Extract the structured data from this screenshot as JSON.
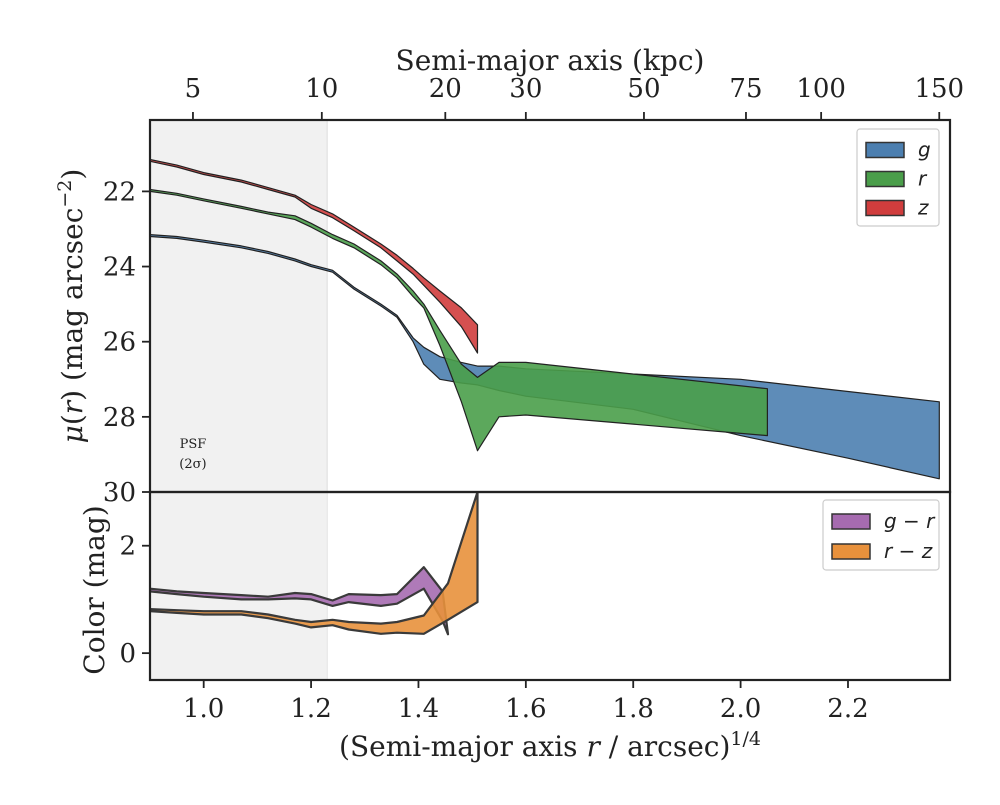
{
  "chart_data": [
    {
      "type": "area",
      "panel": "top",
      "ylabel": "μ(r) (mag arcsec⁻²)",
      "top_xlabel": "Semi-major axis (kpc)",
      "xlim": [
        0.9,
        2.39
      ],
      "ylim": [
        30,
        20.1
      ],
      "y_inverted": true,
      "yticks": [
        22,
        24,
        26,
        28,
        30
      ],
      "top_ticks": [
        {
          "label": "5",
          "x": 0.98
        },
        {
          "label": "10",
          "x": 1.22
        },
        {
          "label": "20",
          "x": 1.45
        },
        {
          "label": "30",
          "x": 1.6
        },
        {
          "label": "50",
          "x": 1.82
        },
        {
          "label": "75",
          "x": 2.01
        },
        {
          "label": "100",
          "x": 2.15
        },
        {
          "label": "150",
          "x": 2.37
        }
      ],
      "psf_shade": {
        "x0": 0.9,
        "x1": 1.23,
        "line1": "PSF",
        "line2": "(2σ)"
      },
      "legend": {
        "placement": "top-right"
      },
      "series": [
        {
          "name": "g",
          "color": "#4c7fb0",
          "upper": [
            [
              0.9,
              23.15
            ],
            [
              0.95,
              23.2
            ],
            [
              1.0,
              23.3
            ],
            [
              1.07,
              23.45
            ],
            [
              1.12,
              23.6
            ],
            [
              1.17,
              23.8
            ],
            [
              1.2,
              23.95
            ],
            [
              1.24,
              24.1
            ],
            [
              1.28,
              24.55
            ],
            [
              1.33,
              25.0
            ],
            [
              1.36,
              25.3
            ],
            [
              1.39,
              25.9
            ],
            [
              1.41,
              26.15
            ],
            [
              1.44,
              26.4
            ],
            [
              1.48,
              26.55
            ],
            [
              1.51,
              26.65
            ],
            [
              1.55,
              26.65
            ],
            [
              1.6,
              26.72
            ],
            [
              2.0,
              27.0
            ],
            [
              2.37,
              27.6
            ]
          ],
          "lower": [
            [
              0.9,
              23.2
            ],
            [
              0.95,
              23.25
            ],
            [
              1.0,
              23.35
            ],
            [
              1.07,
              23.5
            ],
            [
              1.12,
              23.65
            ],
            [
              1.17,
              23.85
            ],
            [
              1.2,
              24.0
            ],
            [
              1.24,
              24.15
            ],
            [
              1.28,
              24.6
            ],
            [
              1.33,
              25.05
            ],
            [
              1.36,
              25.35
            ],
            [
              1.39,
              26.0
            ],
            [
              1.41,
              26.6
            ],
            [
              1.44,
              27.0
            ],
            [
              1.48,
              27.1
            ],
            [
              1.51,
              27.15
            ],
            [
              1.55,
              27.3
            ],
            [
              1.6,
              27.45
            ],
            [
              1.8,
              27.8
            ],
            [
              2.0,
              28.5
            ],
            [
              2.2,
              29.1
            ],
            [
              2.37,
              29.65
            ]
          ]
        },
        {
          "name": "r",
          "color": "#4a9e4a",
          "upper": [
            [
              0.9,
              21.95
            ],
            [
              0.95,
              22.05
            ],
            [
              1.0,
              22.2
            ],
            [
              1.07,
              22.4
            ],
            [
              1.12,
              22.55
            ],
            [
              1.17,
              22.65
            ],
            [
              1.2,
              22.85
            ],
            [
              1.24,
              23.15
            ],
            [
              1.28,
              23.4
            ],
            [
              1.33,
              23.85
            ],
            [
              1.36,
              24.2
            ],
            [
              1.39,
              24.65
            ],
            [
              1.41,
              25.0
            ],
            [
              1.44,
              25.7
            ],
            [
              1.48,
              26.6
            ],
            [
              1.51,
              26.95
            ],
            [
              1.55,
              26.55
            ],
            [
              1.6,
              26.55
            ],
            [
              2.05,
              27.25
            ]
          ],
          "lower": [
            [
              0.9,
              22.0
            ],
            [
              0.95,
              22.1
            ],
            [
              1.0,
              22.25
            ],
            [
              1.07,
              22.45
            ],
            [
              1.12,
              22.6
            ],
            [
              1.17,
              22.75
            ],
            [
              1.2,
              22.95
            ],
            [
              1.24,
              23.25
            ],
            [
              1.28,
              23.5
            ],
            [
              1.33,
              23.95
            ],
            [
              1.36,
              24.3
            ],
            [
              1.39,
              24.8
            ],
            [
              1.41,
              25.1
            ],
            [
              1.44,
              26.1
            ],
            [
              1.48,
              27.6
            ],
            [
              1.51,
              28.9
            ],
            [
              1.55,
              28.0
            ],
            [
              1.6,
              27.95
            ],
            [
              2.05,
              28.5
            ]
          ]
        },
        {
          "name": "z",
          "color": "#d03d3d",
          "upper": [
            [
              0.9,
              21.15
            ],
            [
              0.95,
              21.3
            ],
            [
              1.0,
              21.5
            ],
            [
              1.07,
              21.7
            ],
            [
              1.12,
              21.9
            ],
            [
              1.17,
              22.1
            ],
            [
              1.2,
              22.35
            ],
            [
              1.24,
              22.6
            ],
            [
              1.28,
              22.95
            ],
            [
              1.33,
              23.4
            ],
            [
              1.36,
              23.7
            ],
            [
              1.39,
              24.05
            ],
            [
              1.41,
              24.3
            ],
            [
              1.44,
              24.65
            ],
            [
              1.48,
              25.1
            ],
            [
              1.51,
              25.55
            ]
          ],
          "lower": [
            [
              0.9,
              21.2
            ],
            [
              0.95,
              21.35
            ],
            [
              1.0,
              21.55
            ],
            [
              1.07,
              21.75
            ],
            [
              1.12,
              21.95
            ],
            [
              1.17,
              22.15
            ],
            [
              1.2,
              22.45
            ],
            [
              1.24,
              22.7
            ],
            [
              1.28,
              23.05
            ],
            [
              1.33,
              23.5
            ],
            [
              1.36,
              23.85
            ],
            [
              1.39,
              24.2
            ],
            [
              1.41,
              24.5
            ],
            [
              1.44,
              24.95
            ],
            [
              1.48,
              25.6
            ],
            [
              1.51,
              26.3
            ]
          ]
        }
      ]
    },
    {
      "type": "area",
      "panel": "bottom",
      "xlabel": "(Semi-major axis r / arcsec)^1/4",
      "ylabel": "Color (mag)",
      "xlim": [
        0.9,
        2.39
      ],
      "ylim": [
        -0.5,
        3.0
      ],
      "yticks": [
        0,
        2
      ],
      "xticks": [
        1.0,
        1.2,
        1.4,
        1.6,
        1.8,
        2.0,
        2.2
      ],
      "legend": {
        "placement": "top-right"
      },
      "series": [
        {
          "name": "g − r",
          "color": "#a66bb0",
          "upper": [
            [
              0.9,
              1.2
            ],
            [
              0.95,
              1.15
            ],
            [
              1.0,
              1.12
            ],
            [
              1.07,
              1.08
            ],
            [
              1.12,
              1.05
            ],
            [
              1.17,
              1.12
            ],
            [
              1.2,
              1.1
            ],
            [
              1.24,
              0.98
            ],
            [
              1.27,
              1.1
            ],
            [
              1.33,
              1.08
            ],
            [
              1.36,
              1.1
            ],
            [
              1.41,
              1.6
            ],
            [
              1.445,
              1.15
            ],
            [
              1.455,
              0.35
            ]
          ],
          "lower": [
            [
              0.9,
              1.15
            ],
            [
              0.95,
              1.1
            ],
            [
              1.0,
              1.05
            ],
            [
              1.07,
              1.0
            ],
            [
              1.12,
              1.0
            ],
            [
              1.17,
              1.02
            ],
            [
              1.2,
              1.0
            ],
            [
              1.24,
              0.88
            ],
            [
              1.27,
              0.95
            ],
            [
              1.33,
              0.88
            ],
            [
              1.36,
              0.92
            ],
            [
              1.41,
              1.2
            ],
            [
              1.445,
              0.6
            ],
            [
              1.455,
              0.35
            ]
          ]
        },
        {
          "name": "r − z",
          "color": "#e8913c",
          "upper": [
            [
              0.9,
              0.82
            ],
            [
              0.95,
              0.8
            ],
            [
              1.0,
              0.78
            ],
            [
              1.07,
              0.78
            ],
            [
              1.12,
              0.72
            ],
            [
              1.17,
              0.62
            ],
            [
              1.2,
              0.58
            ],
            [
              1.24,
              0.62
            ],
            [
              1.27,
              0.58
            ],
            [
              1.33,
              0.55
            ],
            [
              1.36,
              0.58
            ],
            [
              1.41,
              0.7
            ],
            [
              1.455,
              1.3
            ],
            [
              1.51,
              3.0
            ]
          ],
          "lower": [
            [
              0.9,
              0.78
            ],
            [
              0.95,
              0.75
            ],
            [
              1.0,
              0.72
            ],
            [
              1.07,
              0.72
            ],
            [
              1.12,
              0.65
            ],
            [
              1.17,
              0.55
            ],
            [
              1.2,
              0.48
            ],
            [
              1.24,
              0.52
            ],
            [
              1.27,
              0.44
            ],
            [
              1.33,
              0.36
            ],
            [
              1.36,
              0.38
            ],
            [
              1.41,
              0.36
            ],
            [
              1.455,
              0.62
            ],
            [
              1.51,
              0.95
            ]
          ]
        }
      ]
    }
  ]
}
